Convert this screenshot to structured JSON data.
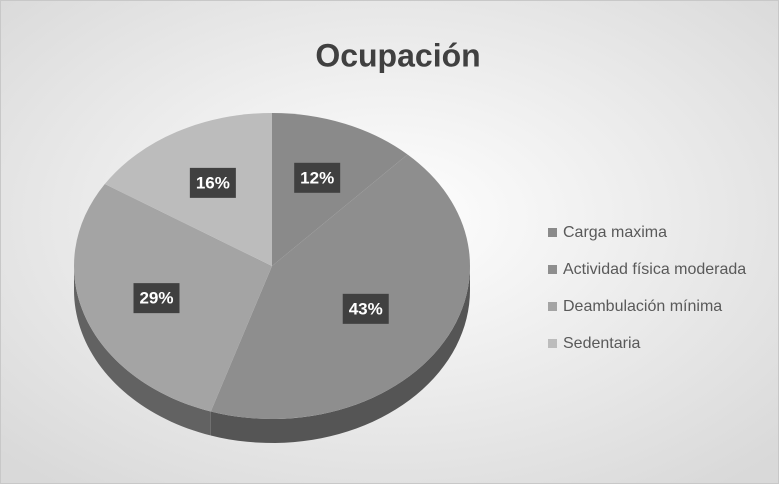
{
  "chart_data": {
    "type": "pie",
    "title": "Ocupación",
    "categories": [
      "Carga maxima",
      "Actividad física moderada",
      "Deambulación mínima",
      "Sedentaria"
    ],
    "values": [
      12,
      43,
      29,
      16
    ],
    "value_labels": [
      "12%",
      "43%",
      "29%",
      "16%"
    ],
    "colors": [
      "#8a8a8a",
      "#8e8e8e",
      "#a4a4a4",
      "#bcbcbc"
    ],
    "legend": "right"
  }
}
